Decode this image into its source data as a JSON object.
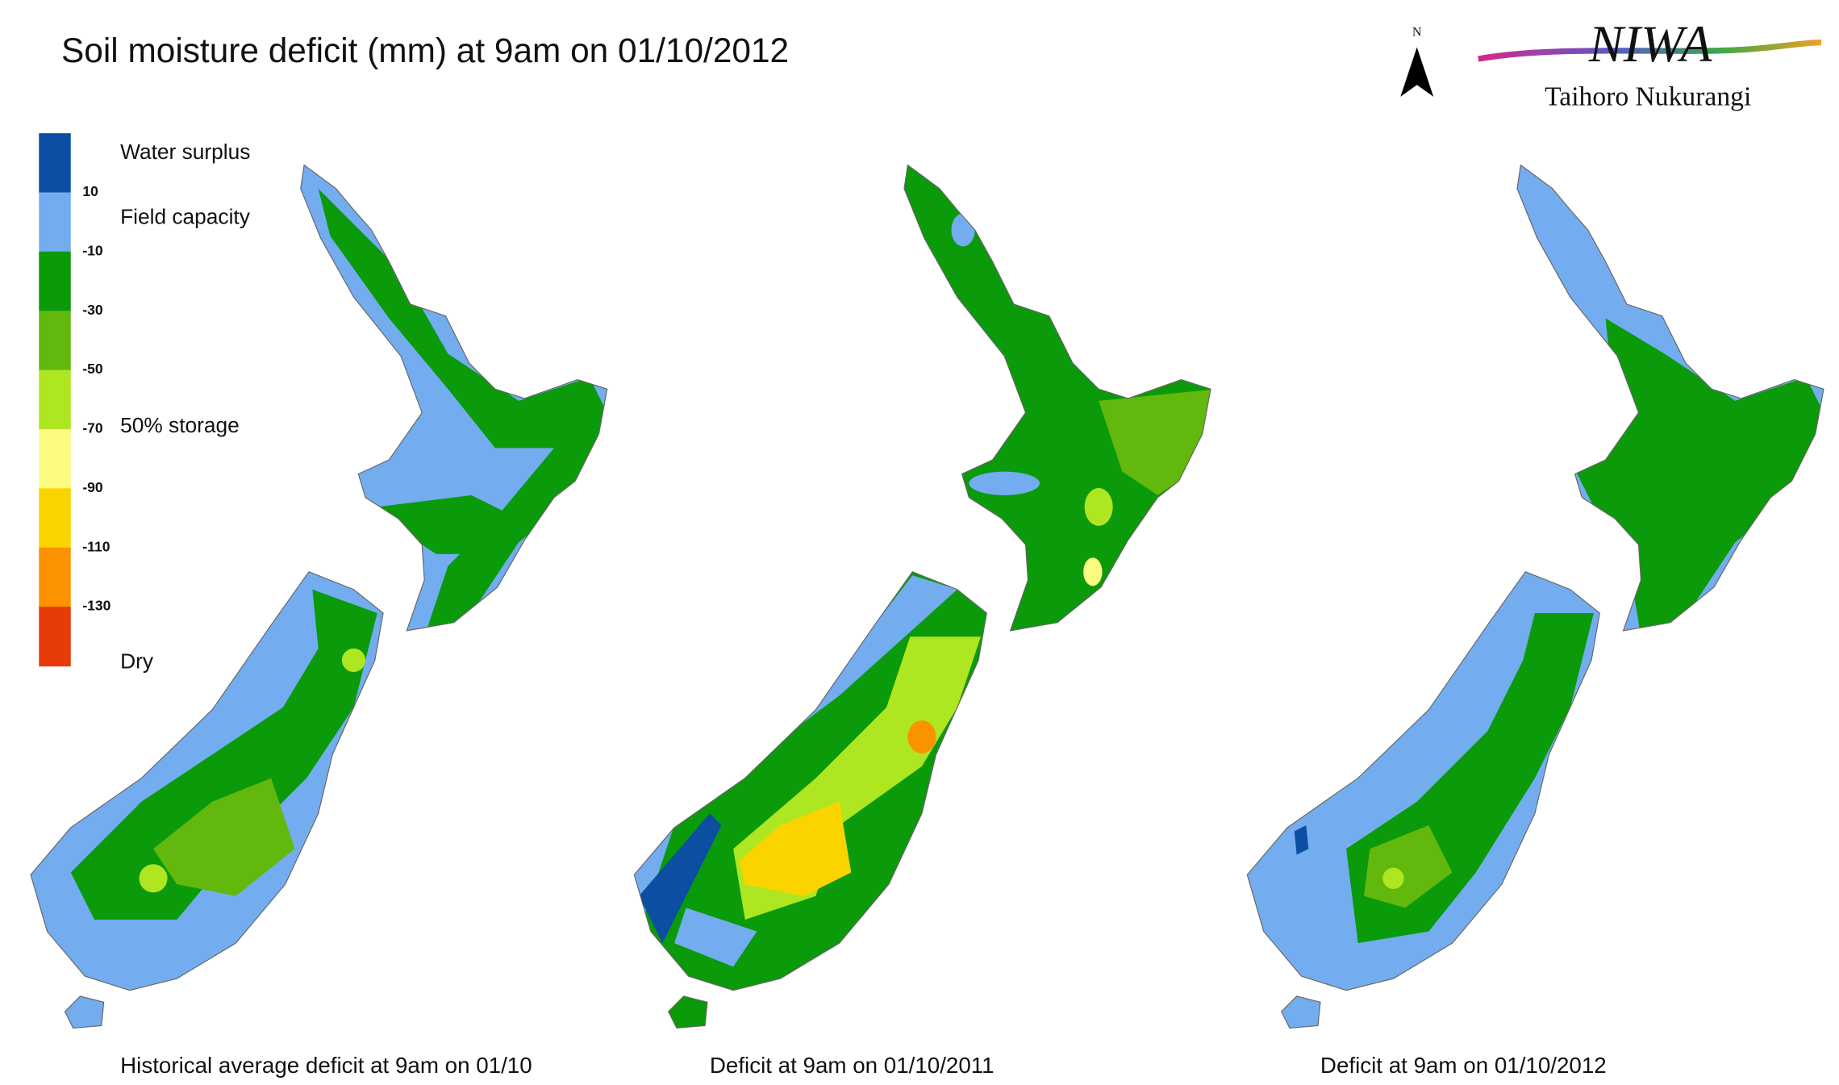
{
  "title": "Soil moisture deficit (mm) at  9am on 01/10/2012",
  "north": "N",
  "logo": {
    "name": "NIWA",
    "subtitle": "Taihoro Nukurangi"
  },
  "legend": {
    "colors": [
      "#0b4ea2",
      "#73adf0",
      "#0a9a0a",
      "#62b80c",
      "#aee622",
      "#fbfb82",
      "#fbd400",
      "#fb9200",
      "#e83c08"
    ],
    "ticks": [
      "10",
      "-10",
      "-30",
      "-50",
      "-70",
      "-90",
      "-110",
      "-130"
    ],
    "labels": [
      "Water surplus",
      "Field capacity",
      "50% storage",
      "Dry"
    ]
  },
  "maps": [
    {
      "caption": "Historical average deficit at  9am on 01/10"
    },
    {
      "caption": "Deficit at  9am on 01/10/2011"
    },
    {
      "caption": "Deficit at  9am on 01/10/2012"
    }
  ]
}
